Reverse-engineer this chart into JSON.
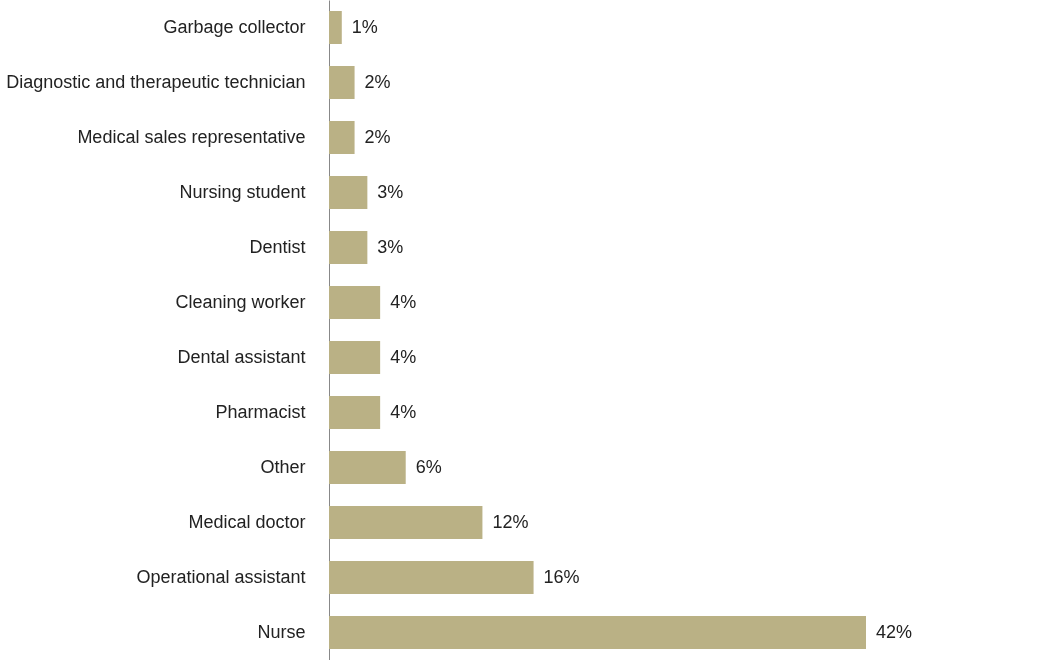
{
  "chart_data": {
    "type": "bar",
    "orientation": "horizontal",
    "categories": [
      "Garbage collector",
      "Diagnostic and therapeutic technician",
      "Medical sales representative",
      "Nursing student",
      "Dentist",
      "Cleaning worker",
      "Dental assistant",
      "Pharmacist",
      "Other",
      "Medical doctor",
      "Operational assistant",
      "Nurse"
    ],
    "values": [
      1,
      2,
      2,
      3,
      3,
      4,
      4,
      4,
      6,
      12,
      16,
      42
    ],
    "value_labels": [
      "1%",
      "2%",
      "2%",
      "3%",
      "3%",
      "4%",
      "4%",
      "4%",
      "6%",
      "12%",
      "16%",
      "42%"
    ],
    "color": "#bab185"
  }
}
